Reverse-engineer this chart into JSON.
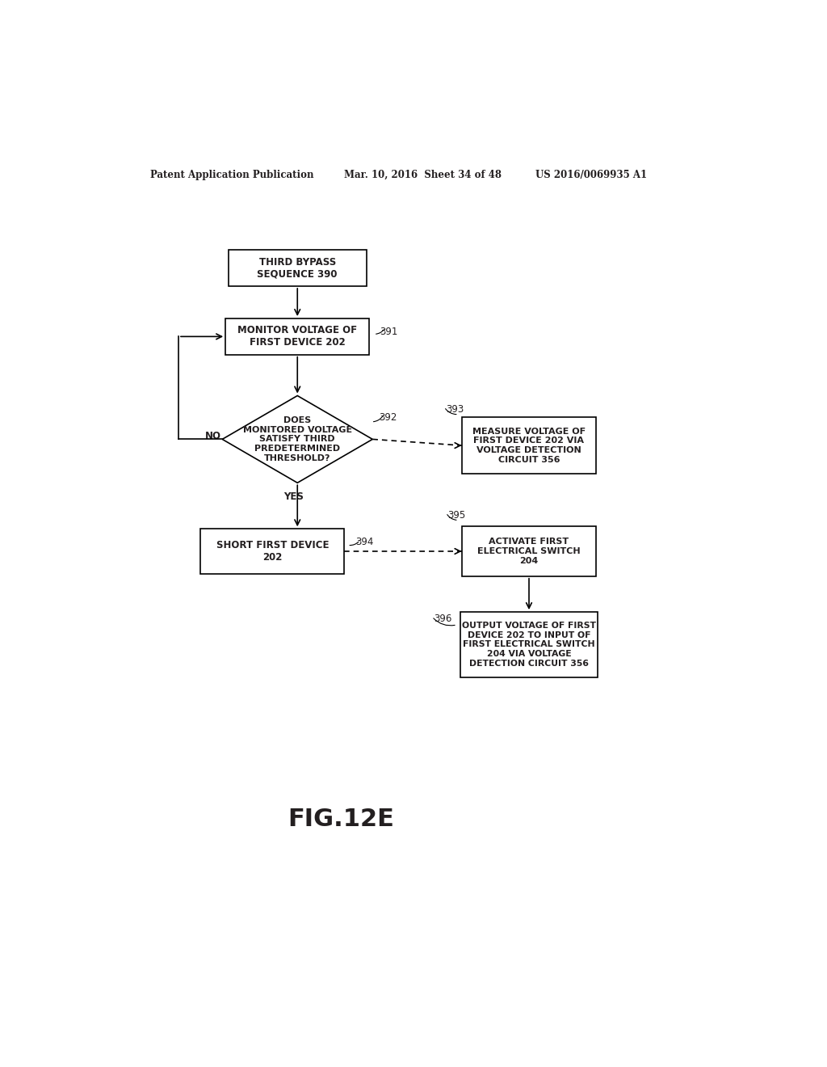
{
  "bg_color": "#ffffff",
  "header_text": "Patent Application Publication",
  "header_date": "Mar. 10, 2016  Sheet 34 of 48",
  "header_patent": "US 2016/0069935 A1",
  "fig_label": "FIG.12E",
  "font_color": "#231f20"
}
